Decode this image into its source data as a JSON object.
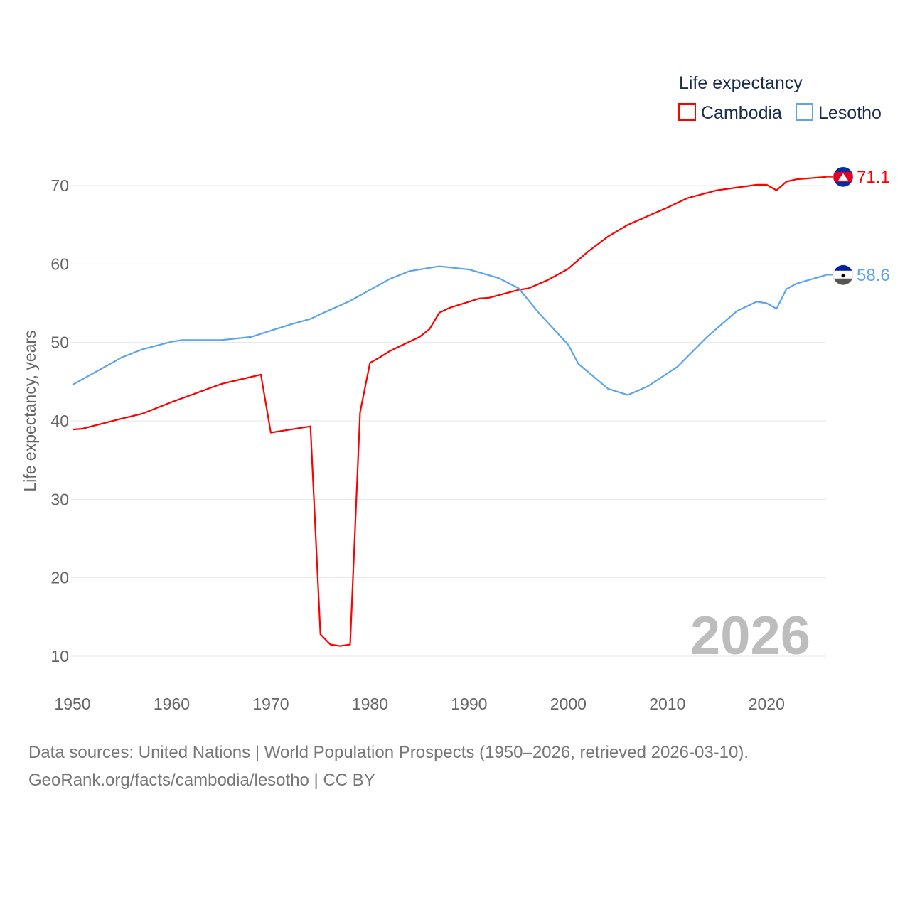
{
  "chart_data": {
    "type": "line",
    "title": "",
    "legend_title": "Life expectancy",
    "legend_position": "top-right",
    "ylabel": "Life expectancy, years",
    "xlabel": "",
    "xlim": [
      1950,
      2026
    ],
    "ylim": [
      10,
      70
    ],
    "x_ticks": [
      1950,
      1960,
      1970,
      1980,
      1990,
      2000,
      2010,
      2020
    ],
    "y_ticks": [
      10,
      20,
      30,
      40,
      50,
      60,
      70
    ],
    "grid": true,
    "year_watermark": "2026",
    "series": [
      {
        "name": "Cambodia",
        "color": "#ff0000",
        "end_label": "71.1",
        "x": [
          1950,
          1951,
          1955,
          1957,
          1960,
          1965,
          1967,
          1969,
          1970,
          1974,
          1975,
          1976,
          1977,
          1978,
          1979,
          1980,
          1981,
          1982,
          1985,
          1986,
          1987,
          1988,
          1990,
          1991,
          1992,
          1995,
          1996,
          1998,
          2000,
          2002,
          2004,
          2006,
          2010,
          2012,
          2015,
          2019,
          2020,
          2021,
          2022,
          2023,
          2024,
          2026
        ],
        "y": [
          38.9,
          39.0,
          40.3,
          40.9,
          42.4,
          44.7,
          45.3,
          45.9,
          38.5,
          39.3,
          12.8,
          11.5,
          11.3,
          11.5,
          41.1,
          47.4,
          48.1,
          48.9,
          50.7,
          51.7,
          53.8,
          54.4,
          55.2,
          55.6,
          55.7,
          56.7,
          56.9,
          58.0,
          59.4,
          61.6,
          63.5,
          65.0,
          67.2,
          68.4,
          69.4,
          70.1,
          70.1,
          69.4,
          70.5,
          70.8,
          70.9,
          71.1
        ]
      },
      {
        "name": "Lesotho",
        "color": "#5aa5ee",
        "end_label": "58.6",
        "x": [
          1950,
          1955,
          1957,
          1960,
          1961,
          1965,
          1968,
          1970,
          1972,
          1974,
          1975,
          1978,
          1980,
          1982,
          1984,
          1987,
          1990,
          1993,
          1995,
          1997,
          2000,
          2001,
          2004,
          2006,
          2008,
          2011,
          2014,
          2017,
          2019,
          2020,
          2021,
          2022,
          2023,
          2026
        ],
        "y": [
          44.6,
          48.1,
          49.1,
          50.1,
          50.3,
          50.3,
          50.7,
          51.5,
          52.3,
          53.0,
          53.6,
          55.3,
          56.7,
          58.1,
          59.1,
          59.7,
          59.3,
          58.2,
          56.9,
          53.8,
          49.7,
          47.3,
          44.1,
          43.3,
          44.4,
          46.9,
          50.7,
          54.0,
          55.2,
          55.0,
          54.3,
          56.8,
          57.5,
          58.6
        ]
      }
    ]
  },
  "footer": {
    "line1": "Data sources: United Nations | World Population Prospects (1950–2026, retrieved 2026-03-10).",
    "line2": "GeoRank.org/facts/cambodia/lesotho | CC BY"
  }
}
